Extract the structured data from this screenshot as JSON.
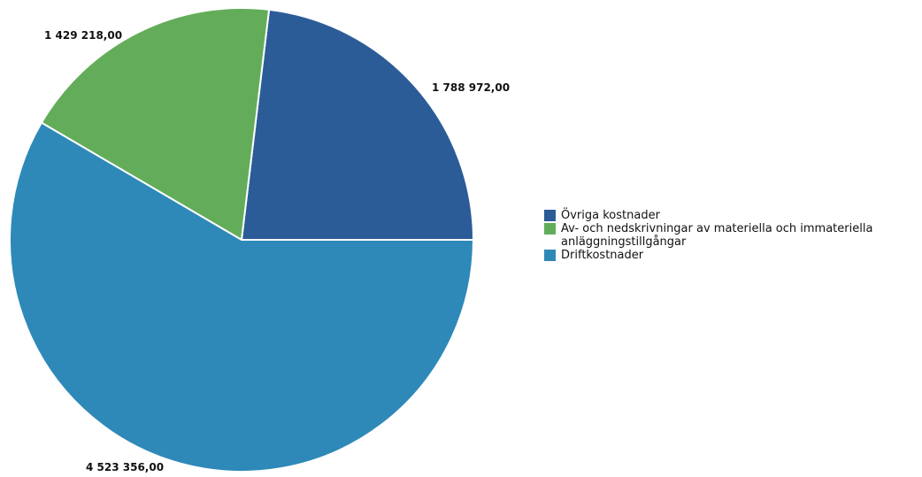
{
  "chart_data": {
    "type": "pie",
    "title": "",
    "slices": [
      {
        "label": "Övriga kostnader",
        "value": 1788972.0,
        "value_label": "1 788 972,00",
        "color": "#2b5c97"
      },
      {
        "label": "Av- och nedskrivningar av materiella och immateriella anläggningstillgångar",
        "value": 1429218.0,
        "value_label": "1 429 218,00",
        "color": "#63ad5a"
      },
      {
        "label": "Driftkostnader",
        "value": 4523356.0,
        "value_label": "4 523 356,00",
        "color": "#2e89b9"
      }
    ],
    "legend_position": "right"
  }
}
